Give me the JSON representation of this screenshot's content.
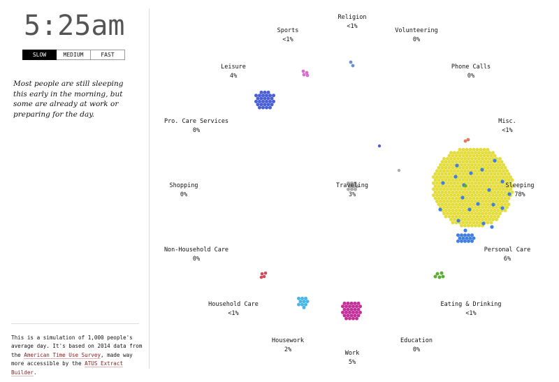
{
  "clock": "5:25am",
  "speed": {
    "options": [
      "SLOW",
      "MEDIUM",
      "FAST"
    ],
    "selected": "SLOW"
  },
  "narration": "Most people are still sleeping this early in the morning, but some are already at work or preparing for the day.",
  "note": {
    "text_1": "This is a simulation of 1,000 people's average day. It's based on 2014 data from the ",
    "link_1": "American Time Use Survey",
    "text_2": ", made way more accessible by the ",
    "link_2": "ATUS Extract Builder",
    "text_3": "."
  },
  "activities": [
    {
      "name": "Religion",
      "pct": "<1%"
    },
    {
      "name": "Sports",
      "pct": "<1%"
    },
    {
      "name": "Volunteering",
      "pct": "0%"
    },
    {
      "name": "Leisure",
      "pct": "4%"
    },
    {
      "name": "Phone Calls",
      "pct": "0%"
    },
    {
      "name": "Pro. Care Services",
      "pct": "0%"
    },
    {
      "name": "Misc.",
      "pct": "<1%"
    },
    {
      "name": "Shopping",
      "pct": "0%"
    },
    {
      "name": "Traveling",
      "pct": "3%"
    },
    {
      "name": "Sleeping",
      "pct": "78%"
    },
    {
      "name": "Non-Household Care",
      "pct": "0%"
    },
    {
      "name": "Personal Care",
      "pct": "6%"
    },
    {
      "name": "Household Care",
      "pct": "<1%"
    },
    {
      "name": "Eating & Drinking",
      "pct": "<1%"
    },
    {
      "name": "Housework",
      "pct": "2%"
    },
    {
      "name": "Education",
      "pct": "0%"
    },
    {
      "name": "Work",
      "pct": "5%"
    }
  ],
  "colors": {
    "sleeping": "#e3dc3a",
    "personal_care": "#3f7fe0",
    "leisure": "#4a5fd6",
    "work": "#c4309a",
    "household_care": "#48b6e6",
    "traveling": "#aaaaaa",
    "eating": "#5aae35",
    "sports": "#d86fcc",
    "religion": "#6b8fd4",
    "misc": "#e07a5a",
    "non_household_care": "#d2495a"
  }
}
